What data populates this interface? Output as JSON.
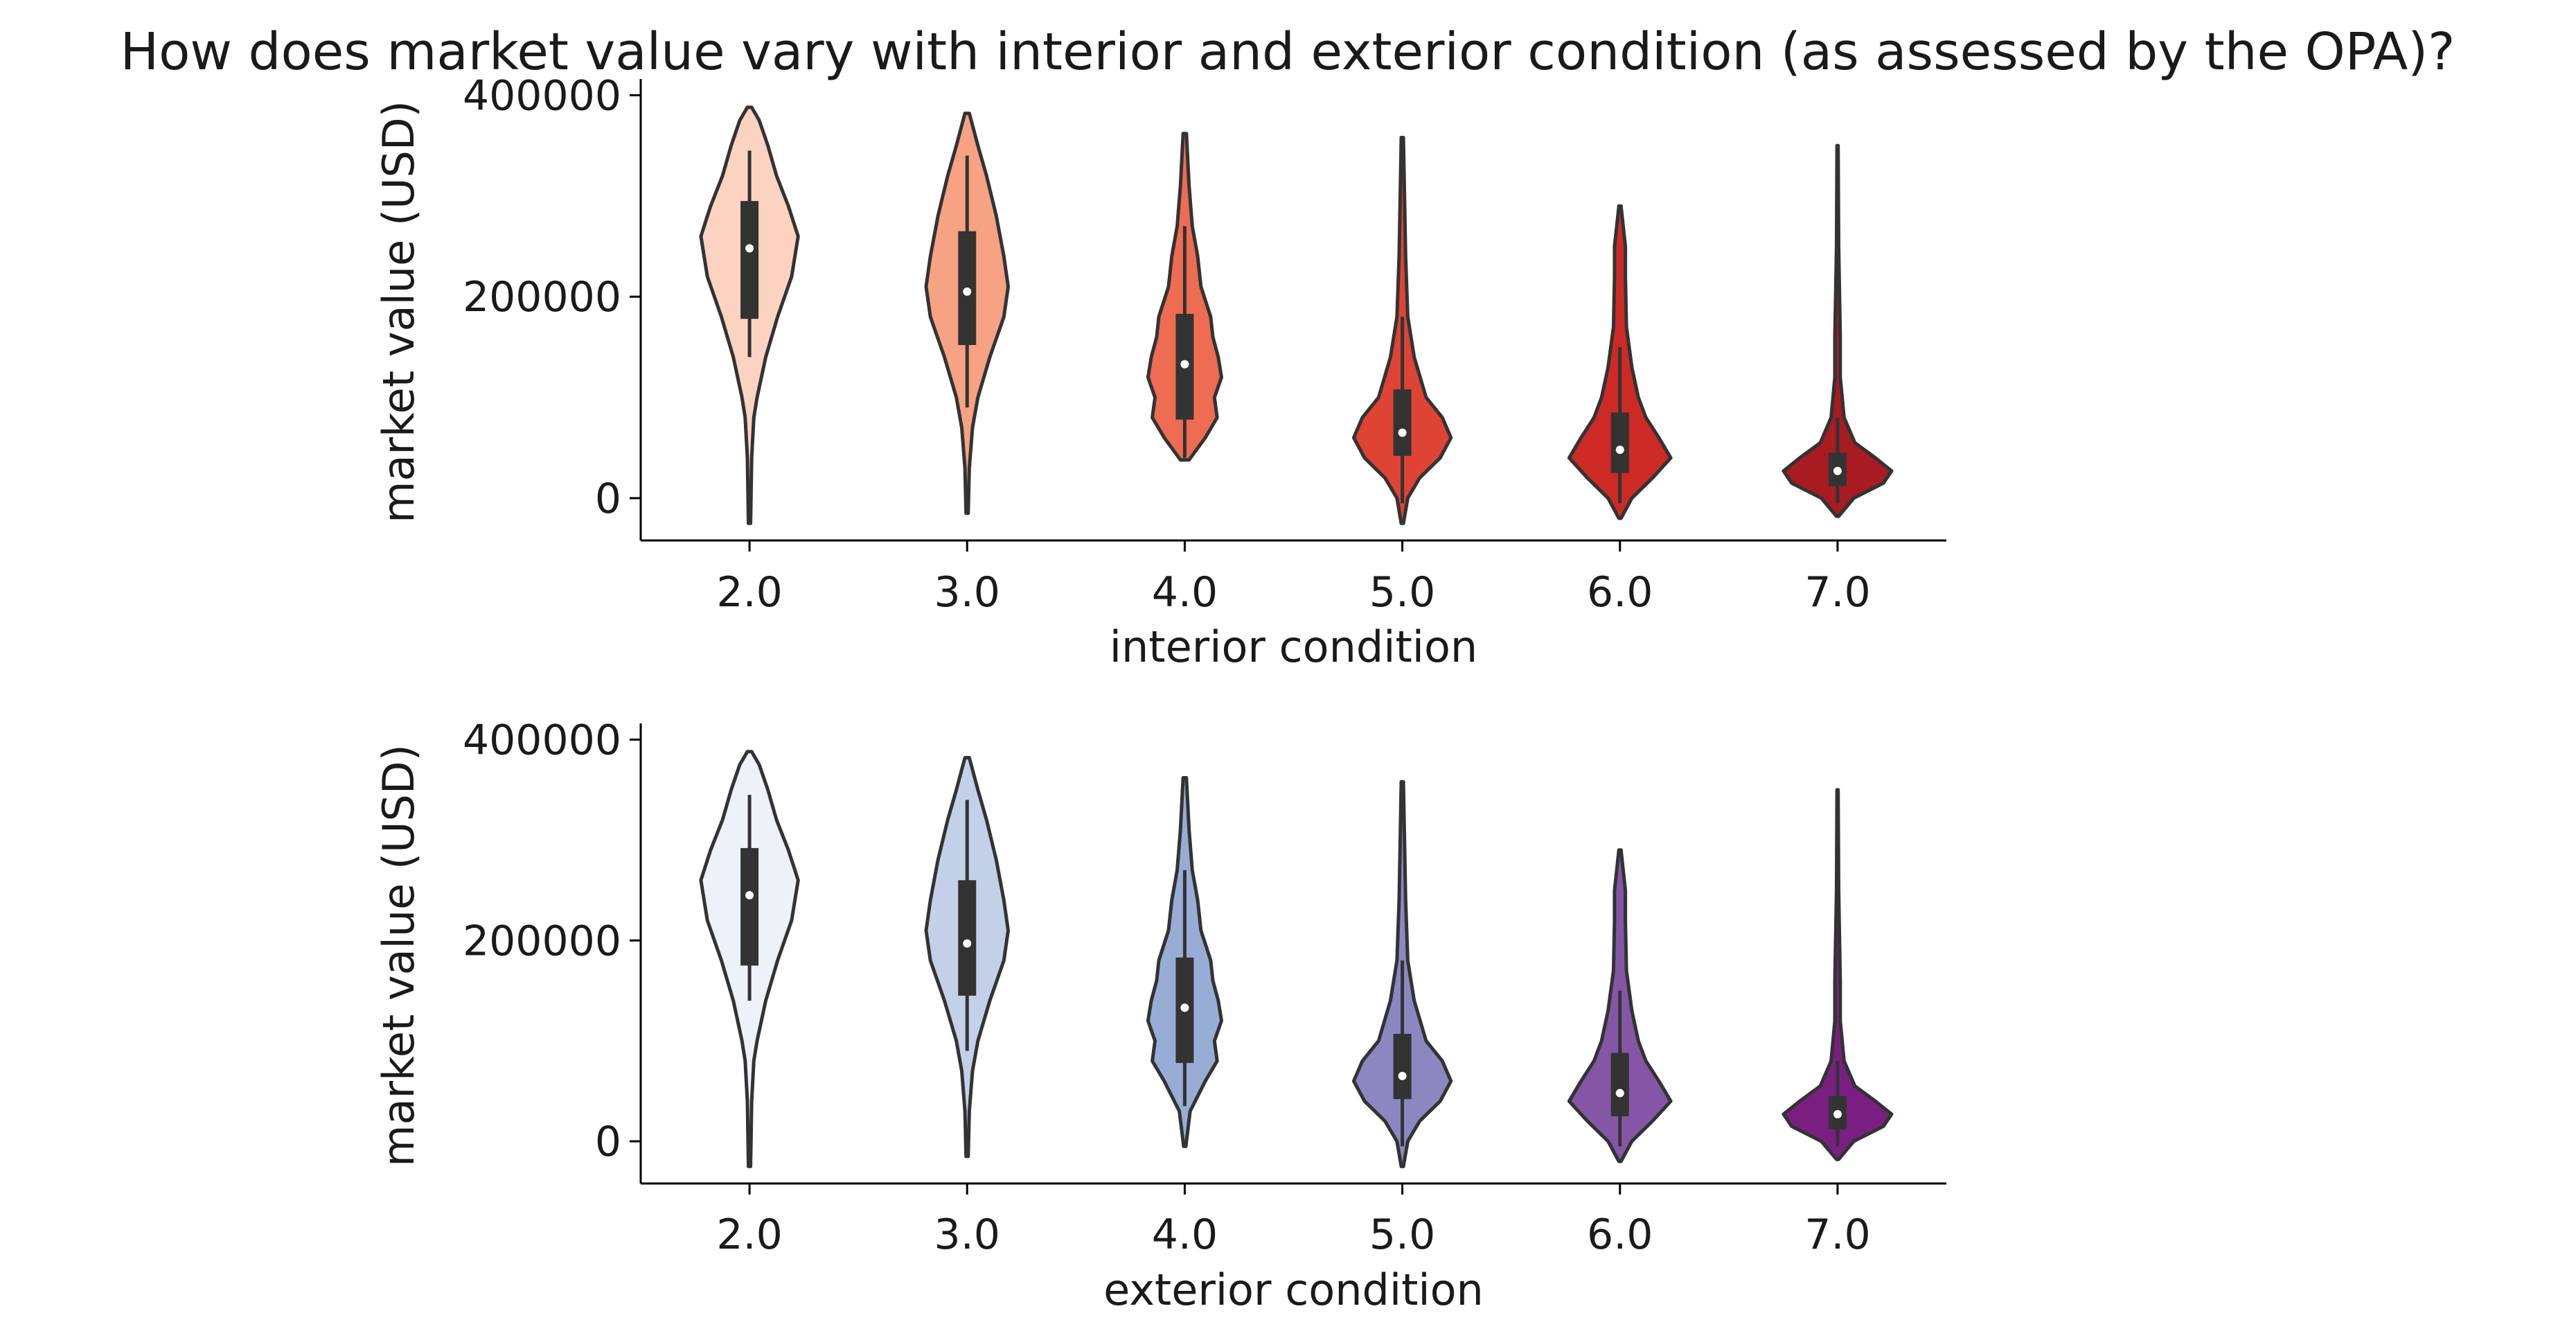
{
  "title": "How does market value vary with interior and exterior condition (as assessed by the OPA)?",
  "chart_data": [
    {
      "type": "violin",
      "xlabel": "interior condition",
      "ylabel": "market value (USD)",
      "categories": [
        "2.0",
        "3.0",
        "4.0",
        "5.0",
        "6.0",
        "7.0"
      ],
      "yticks": [
        "0",
        "200000",
        "400000"
      ],
      "ylim": [
        -42000,
        412000
      ],
      "palette": [
        "#fbd3c0",
        "#f6a283",
        "#ed6c52",
        "#de4334",
        "#cd2a26",
        "#a81b20"
      ],
      "violins": [
        {
          "category": "2.0",
          "min": -25000,
          "max": 388000,
          "q1": 178000,
          "median": 248000,
          "q3": 295000,
          "whisker_low": 140000,
          "whisker_high": 345000,
          "density": [
            [
              -25000,
              0.02
            ],
            [
              40000,
              0.04
            ],
            [
              80000,
              0.08
            ],
            [
              100000,
              0.14
            ],
            [
              140000,
              0.3
            ],
            [
              180000,
              0.52
            ],
            [
              220000,
              0.78
            ],
            [
              260000,
              0.9
            ],
            [
              290000,
              0.72
            ],
            [
              320000,
              0.5
            ],
            [
              350000,
              0.34
            ],
            [
              375000,
              0.18
            ],
            [
              388000,
              0.04
            ]
          ]
        },
        {
          "category": "3.0",
          "min": -15000,
          "max": 382000,
          "q1": 152000,
          "median": 205000,
          "q3": 265000,
          "whisker_low": 90000,
          "whisker_high": 340000,
          "density": [
            [
              -15000,
              0.02
            ],
            [
              30000,
              0.04
            ],
            [
              70000,
              0.1
            ],
            [
              100000,
              0.2
            ],
            [
              140000,
              0.42
            ],
            [
              180000,
              0.68
            ],
            [
              210000,
              0.76
            ],
            [
              240000,
              0.68
            ],
            [
              280000,
              0.54
            ],
            [
              320000,
              0.36
            ],
            [
              350000,
              0.2
            ],
            [
              382000,
              0.04
            ]
          ]
        },
        {
          "category": "4.0",
          "min": 38000,
          "max": 362000,
          "q1": 78000,
          "median": 133000,
          "q3": 183000,
          "whisker_low": 40000,
          "whisker_high": 270000,
          "density": [
            [
              38000,
              0.08
            ],
            [
              60000,
              0.38
            ],
            [
              80000,
              0.6
            ],
            [
              100000,
              0.55
            ],
            [
              120000,
              0.68
            ],
            [
              140000,
              0.62
            ],
            [
              160000,
              0.52
            ],
            [
              180000,
              0.48
            ],
            [
              210000,
              0.3
            ],
            [
              240000,
              0.24
            ],
            [
              270000,
              0.14
            ],
            [
              310000,
              0.08
            ],
            [
              362000,
              0.03
            ]
          ]
        },
        {
          "category": "5.0",
          "min": -25000,
          "max": 358000,
          "q1": 42000,
          "median": 65000,
          "q3": 108000,
          "whisker_low": -5000,
          "whisker_high": 180000,
          "density": [
            [
              -25000,
              0.02
            ],
            [
              0,
              0.1
            ],
            [
              20000,
              0.32
            ],
            [
              40000,
              0.7
            ],
            [
              60000,
              0.9
            ],
            [
              80000,
              0.74
            ],
            [
              100000,
              0.44
            ],
            [
              140000,
              0.22
            ],
            [
              180000,
              0.1
            ],
            [
              240000,
              0.06
            ],
            [
              300000,
              0.04
            ],
            [
              358000,
              0.02
            ]
          ]
        },
        {
          "category": "6.0",
          "min": -20000,
          "max": 290000,
          "q1": 25000,
          "median": 48000,
          "q3": 85000,
          "whisker_low": -5000,
          "whisker_high": 150000,
          "density": [
            [
              -20000,
              0.02
            ],
            [
              0,
              0.22
            ],
            [
              20000,
              0.6
            ],
            [
              40000,
              0.94
            ],
            [
              60000,
              0.72
            ],
            [
              80000,
              0.48
            ],
            [
              100000,
              0.34
            ],
            [
              130000,
              0.22
            ],
            [
              170000,
              0.12
            ],
            [
              220000,
              0.1
            ],
            [
              250000,
              0.1
            ],
            [
              270000,
              0.06
            ],
            [
              290000,
              0.02
            ]
          ]
        },
        {
          "category": "7.0",
          "min": -18000,
          "max": 350000,
          "q1": 12000,
          "median": 27000,
          "q3": 45000,
          "whisker_low": -5000,
          "whisker_high": 80000,
          "density": [
            [
              -18000,
              0.02
            ],
            [
              0,
              0.3
            ],
            [
              15000,
              0.85
            ],
            [
              27000,
              1.0
            ],
            [
              40000,
              0.7
            ],
            [
              55000,
              0.32
            ],
            [
              80000,
              0.12
            ],
            [
              120000,
              0.05
            ],
            [
              160000,
              0.05
            ],
            [
              250000,
              0.02
            ],
            [
              350000,
              0.01
            ]
          ]
        }
      ]
    },
    {
      "type": "violin",
      "xlabel": "exterior condition",
      "ylabel": "market value (USD)",
      "categories": [
        "2.0",
        "3.0",
        "4.0",
        "5.0",
        "6.0",
        "7.0"
      ],
      "yticks": [
        "0",
        "200000",
        "400000"
      ],
      "ylim": [
        -42000,
        412000
      ],
      "palette": [
        "#eef1f8",
        "#c3d1e8",
        "#98add5",
        "#8b88c1",
        "#8456a5",
        "#7a1f81"
      ],
      "violins": [
        {
          "category": "2.0",
          "min": -25000,
          "max": 388000,
          "q1": 175000,
          "median": 245000,
          "q3": 292000,
          "whisker_low": 140000,
          "whisker_high": 345000,
          "density": [
            [
              -25000,
              0.02
            ],
            [
              40000,
              0.04
            ],
            [
              80000,
              0.08
            ],
            [
              100000,
              0.14
            ],
            [
              140000,
              0.3
            ],
            [
              180000,
              0.52
            ],
            [
              220000,
              0.78
            ],
            [
              260000,
              0.9
            ],
            [
              290000,
              0.72
            ],
            [
              320000,
              0.5
            ],
            [
              350000,
              0.34
            ],
            [
              375000,
              0.18
            ],
            [
              388000,
              0.04
            ]
          ]
        },
        {
          "category": "3.0",
          "min": -15000,
          "max": 382000,
          "q1": 145000,
          "median": 197000,
          "q3": 260000,
          "whisker_low": 90000,
          "whisker_high": 340000,
          "density": [
            [
              -15000,
              0.02
            ],
            [
              30000,
              0.04
            ],
            [
              70000,
              0.1
            ],
            [
              100000,
              0.2
            ],
            [
              140000,
              0.42
            ],
            [
              180000,
              0.68
            ],
            [
              210000,
              0.76
            ],
            [
              240000,
              0.68
            ],
            [
              280000,
              0.54
            ],
            [
              320000,
              0.36
            ],
            [
              350000,
              0.2
            ],
            [
              382000,
              0.04
            ]
          ]
        },
        {
          "category": "4.0",
          "min": -5000,
          "max": 362000,
          "q1": 78000,
          "median": 133000,
          "q3": 183000,
          "whisker_low": 35000,
          "whisker_high": 270000,
          "density": [
            [
              -5000,
              0.02
            ],
            [
              30000,
              0.1
            ],
            [
              60000,
              0.38
            ],
            [
              80000,
              0.6
            ],
            [
              100000,
              0.55
            ],
            [
              120000,
              0.68
            ],
            [
              140000,
              0.62
            ],
            [
              160000,
              0.52
            ],
            [
              180000,
              0.48
            ],
            [
              210000,
              0.3
            ],
            [
              240000,
              0.24
            ],
            [
              270000,
              0.14
            ],
            [
              310000,
              0.08
            ],
            [
              362000,
              0.03
            ]
          ]
        },
        {
          "category": "5.0",
          "min": -25000,
          "max": 358000,
          "q1": 42000,
          "median": 65000,
          "q3": 107000,
          "whisker_low": -5000,
          "whisker_high": 180000,
          "density": [
            [
              -25000,
              0.02
            ],
            [
              0,
              0.1
            ],
            [
              20000,
              0.32
            ],
            [
              40000,
              0.7
            ],
            [
              60000,
              0.9
            ],
            [
              80000,
              0.74
            ],
            [
              100000,
              0.44
            ],
            [
              140000,
              0.22
            ],
            [
              180000,
              0.1
            ],
            [
              240000,
              0.06
            ],
            [
              300000,
              0.04
            ],
            [
              358000,
              0.02
            ]
          ]
        },
        {
          "category": "6.0",
          "min": -20000,
          "max": 290000,
          "q1": 25000,
          "median": 48000,
          "q3": 88000,
          "whisker_low": -5000,
          "whisker_high": 150000,
          "density": [
            [
              -20000,
              0.02
            ],
            [
              0,
              0.22
            ],
            [
              20000,
              0.6
            ],
            [
              40000,
              0.94
            ],
            [
              60000,
              0.72
            ],
            [
              80000,
              0.48
            ],
            [
              100000,
              0.34
            ],
            [
              130000,
              0.22
            ],
            [
              170000,
              0.12
            ],
            [
              220000,
              0.1
            ],
            [
              250000,
              0.1
            ],
            [
              270000,
              0.06
            ],
            [
              290000,
              0.02
            ]
          ]
        },
        {
          "category": "7.0",
          "min": -18000,
          "max": 350000,
          "q1": 12000,
          "median": 27000,
          "q3": 45000,
          "whisker_low": -5000,
          "whisker_high": 80000,
          "density": [
            [
              -18000,
              0.02
            ],
            [
              0,
              0.3
            ],
            [
              15000,
              0.85
            ],
            [
              27000,
              1.0
            ],
            [
              40000,
              0.7
            ],
            [
              55000,
              0.32
            ],
            [
              80000,
              0.12
            ],
            [
              120000,
              0.05
            ],
            [
              160000,
              0.05
            ],
            [
              250000,
              0.02
            ],
            [
              350000,
              0.01
            ]
          ]
        }
      ]
    }
  ]
}
